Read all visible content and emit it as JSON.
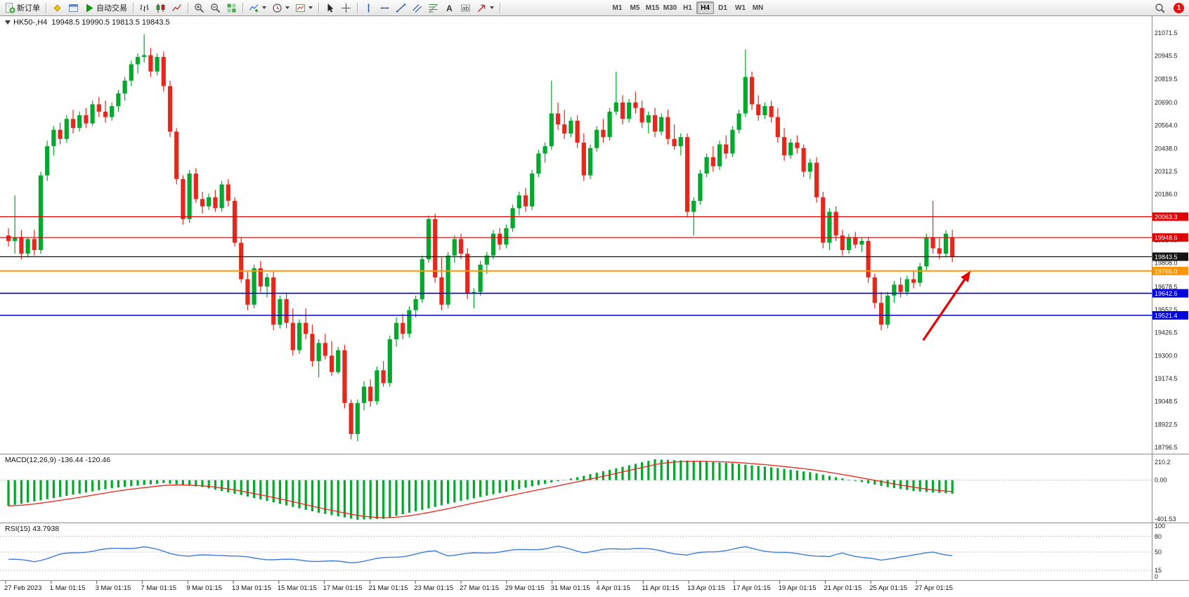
{
  "toolbar": {
    "new_order_label": "新订单",
    "auto_trading_label": "自动交易",
    "timeframes": [
      "M1",
      "M5",
      "M15",
      "M30",
      "H1",
      "H4",
      "D1",
      "W1",
      "MN"
    ],
    "active_timeframe": "H4",
    "notification_count": "1"
  },
  "chart": {
    "symbol_period": "HK50-,H4",
    "ohlc": "19948.5 19990.5 19813.5 19843.5"
  },
  "indicators_text": {
    "macd_label": "MACD(12,26,9)",
    "macd_main": "-136.44",
    "macd_signal": "-120.46",
    "rsi_label": "RSI(15)",
    "rsi_value": "43.7938"
  },
  "chart_data": {
    "type": "candlestick",
    "symbol": "HK50-",
    "period": "H4",
    "current_bar": {
      "open": 19948.5,
      "high": 19990.5,
      "low": 19813.5,
      "close": 19843.5
    },
    "ylim": [
      18796.5,
      21071.5
    ],
    "colors": {
      "bull": "#00A92B",
      "bear": "#E8261C",
      "macd_hist": "#00A92B",
      "macd_signal": "#E8261C",
      "rsi_line": "#3D7BE0",
      "arrow": "#E60000"
    },
    "candles": [
      [
        19960,
        20000,
        19900,
        19930
      ],
      [
        19930,
        20180,
        19860,
        19950
      ],
      [
        19950,
        19990,
        19830,
        19860
      ],
      [
        19860,
        19950,
        19840,
        19940
      ],
      [
        19940,
        19990,
        19850,
        19880
      ],
      [
        19880,
        20310,
        19860,
        20290
      ],
      [
        20290,
        20480,
        20260,
        20450
      ],
      [
        20450,
        20560,
        20400,
        20540
      ],
      [
        20540,
        20580,
        20460,
        20490
      ],
      [
        20490,
        20620,
        20470,
        20600
      ],
      [
        20600,
        20650,
        20520,
        20550
      ],
      [
        20550,
        20640,
        20530,
        20620
      ],
      [
        20620,
        20660,
        20550,
        20575
      ],
      [
        20575,
        20700,
        20560,
        20680
      ],
      [
        20680,
        20720,
        20610,
        20640
      ],
      [
        20640,
        20700,
        20580,
        20610
      ],
      [
        20610,
        20690,
        20590,
        20670
      ],
      [
        20670,
        20760,
        20640,
        20740
      ],
      [
        20740,
        20830,
        20700,
        20810
      ],
      [
        20810,
        20920,
        20780,
        20900
      ],
      [
        20900,
        20960,
        20850,
        20940
      ],
      [
        20940,
        21065,
        20910,
        20950
      ],
      [
        20950,
        20990,
        20830,
        20860
      ],
      [
        20860,
        20960,
        20840,
        20940
      ],
      [
        20940,
        20970,
        20750,
        20780
      ],
      [
        20780,
        20810,
        20500,
        20530
      ],
      [
        20530,
        20550,
        20240,
        20270
      ],
      [
        20270,
        20290,
        20020,
        20050
      ],
      [
        20050,
        20320,
        20030,
        20300
      ],
      [
        20300,
        20330,
        20140,
        20160
      ],
      [
        20160,
        20200,
        20080,
        20120
      ],
      [
        20120,
        20190,
        20100,
        20170
      ],
      [
        20170,
        20210,
        20090,
        20110
      ],
      [
        20110,
        20260,
        20090,
        20240
      ],
      [
        20240,
        20270,
        20120,
        20150
      ],
      [
        20150,
        20170,
        19900,
        19920
      ],
      [
        19920,
        19950,
        19700,
        19720
      ],
      [
        19720,
        19760,
        19550,
        19580
      ],
      [
        19580,
        19800,
        19560,
        19780
      ],
      [
        19780,
        19820,
        19650,
        19680
      ],
      [
        19680,
        19750,
        19620,
        19730
      ],
      [
        19730,
        19760,
        19440,
        19470
      ],
      [
        19470,
        19630,
        19450,
        19610
      ],
      [
        19610,
        19640,
        19450,
        19480
      ],
      [
        19480,
        19560,
        19300,
        19330
      ],
      [
        19330,
        19500,
        19310,
        19480
      ],
      [
        19480,
        19560,
        19390,
        19420
      ],
      [
        19420,
        19470,
        19240,
        19270
      ],
      [
        19270,
        19390,
        19180,
        19370
      ],
      [
        19370,
        19420,
        19280,
        19300
      ],
      [
        19300,
        19380,
        19190,
        19210
      ],
      [
        19210,
        19350,
        19200,
        19330
      ],
      [
        19330,
        19360,
        19010,
        19040
      ],
      [
        19040,
        19060,
        18840,
        18870
      ],
      [
        18870,
        19060,
        18830,
        19040
      ],
      [
        19040,
        19160,
        19000,
        19130
      ],
      [
        19130,
        19170,
        19020,
        19050
      ],
      [
        19050,
        19240,
        19030,
        19220
      ],
      [
        19220,
        19270,
        19130,
        19150
      ],
      [
        19150,
        19410,
        19130,
        19390
      ],
      [
        19390,
        19510,
        19350,
        19480
      ],
      [
        19480,
        19530,
        19390,
        19420
      ],
      [
        19420,
        19570,
        19400,
        19550
      ],
      [
        19550,
        19630,
        19510,
        19610
      ],
      [
        19610,
        19850,
        19590,
        19830
      ],
      [
        19830,
        20070,
        19810,
        20050
      ],
      [
        20050,
        20080,
        19700,
        19730
      ],
      [
        19730,
        19840,
        19550,
        19580
      ],
      [
        19580,
        19870,
        19560,
        19850
      ],
      [
        19850,
        19960,
        19810,
        19940
      ],
      [
        19940,
        19970,
        19830,
        19860
      ],
      [
        19860,
        19890,
        19610,
        19640
      ],
      [
        19640,
        19670,
        19560,
        19650
      ],
      [
        19650,
        19820,
        19630,
        19800
      ],
      [
        19800,
        19870,
        19750,
        19850
      ],
      [
        19850,
        19990,
        19830,
        19970
      ],
      [
        19970,
        20000,
        19880,
        19910
      ],
      [
        19910,
        20020,
        19890,
        20000
      ],
      [
        20000,
        20130,
        19980,
        20110
      ],
      [
        20110,
        20200,
        20070,
        20180
      ],
      [
        20180,
        20220,
        20090,
        20120
      ],
      [
        20120,
        20320,
        20100,
        20300
      ],
      [
        20300,
        20430,
        20280,
        20410
      ],
      [
        20410,
        20470,
        20360,
        20450
      ],
      [
        20450,
        20810,
        20430,
        20630
      ],
      [
        20630,
        20690,
        20540,
        20570
      ],
      [
        20570,
        20650,
        20490,
        20520
      ],
      [
        20520,
        20610,
        20500,
        20590
      ],
      [
        20590,
        20620,
        20440,
        20470
      ],
      [
        20470,
        20520,
        20260,
        20290
      ],
      [
        20290,
        20460,
        20270,
        20440
      ],
      [
        20440,
        20560,
        20420,
        20540
      ],
      [
        20540,
        20600,
        20470,
        20500
      ],
      [
        20500,
        20660,
        20480,
        20640
      ],
      [
        20640,
        20860,
        20620,
        20690
      ],
      [
        20690,
        20730,
        20570,
        20600
      ],
      [
        20600,
        20710,
        20580,
        20690
      ],
      [
        20690,
        20750,
        20630,
        20660
      ],
      [
        20660,
        20700,
        20550,
        20580
      ],
      [
        20580,
        20640,
        20520,
        20620
      ],
      [
        20620,
        20660,
        20500,
        20530
      ],
      [
        20530,
        20630,
        20510,
        20610
      ],
      [
        20610,
        20650,
        20460,
        20490
      ],
      [
        20490,
        20570,
        20430,
        20450
      ],
      [
        20450,
        20520,
        20400,
        20500
      ],
      [
        20500,
        20520,
        20060,
        20090
      ],
      [
        20090,
        20170,
        19960,
        20150
      ],
      [
        20150,
        20320,
        20130,
        20300
      ],
      [
        20300,
        20410,
        20280,
        20390
      ],
      [
        20390,
        20450,
        20310,
        20340
      ],
      [
        20340,
        20480,
        20320,
        20460
      ],
      [
        20460,
        20510,
        20380,
        20410
      ],
      [
        20410,
        20560,
        20390,
        20540
      ],
      [
        20540,
        20650,
        20520,
        20630
      ],
      [
        20630,
        20980,
        20610,
        20830
      ],
      [
        20830,
        20860,
        20650,
        20680
      ],
      [
        20680,
        20730,
        20590,
        20620
      ],
      [
        20620,
        20690,
        20600,
        20670
      ],
      [
        20670,
        20700,
        20580,
        20610
      ],
      [
        20610,
        20660,
        20470,
        20500
      ],
      [
        20500,
        20550,
        20370,
        20400
      ],
      [
        20400,
        20490,
        20380,
        20470
      ],
      [
        20470,
        20510,
        20410,
        20440
      ],
      [
        20440,
        20460,
        20280,
        20310
      ],
      [
        20310,
        20380,
        20270,
        20360
      ],
      [
        20360,
        20390,
        20140,
        20170
      ],
      [
        20170,
        20200,
        19890,
        19920
      ],
      [
        19920,
        20110,
        19880,
        20090
      ],
      [
        20090,
        20120,
        19930,
        19960
      ],
      [
        19960,
        19990,
        19850,
        19880
      ],
      [
        19880,
        19970,
        19860,
        19950
      ],
      [
        19950,
        19980,
        19890,
        19910
      ],
      [
        19910,
        19950,
        19870,
        19930
      ],
      [
        19930,
        19950,
        19700,
        19730
      ],
      [
        19730,
        19750,
        19560,
        19590
      ],
      [
        19590,
        19650,
        19440,
        19470
      ],
      [
        19470,
        19650,
        19450,
        19630
      ],
      [
        19630,
        19710,
        19590,
        19690
      ],
      [
        19690,
        19730,
        19620,
        19650
      ],
      [
        19650,
        19740,
        19630,
        19720
      ],
      [
        19720,
        19770,
        19670,
        19700
      ],
      [
        19700,
        19810,
        19680,
        19790
      ],
      [
        19790,
        19970,
        19770,
        19950
      ],
      [
        19950,
        20150,
        19860,
        19890
      ],
      [
        19890,
        19950,
        19830,
        19860
      ],
      [
        19860,
        19990,
        19840,
        19970
      ],
      [
        19948.5,
        19990.5,
        19813.5,
        19843.5
      ]
    ],
    "hlines": [
      {
        "price": 20063.3,
        "label": "20063.3",
        "color": "#E00000",
        "width": 1.2
      },
      {
        "price": 19948.6,
        "label": "19948.6",
        "color": "#E00000",
        "width": 1.2
      },
      {
        "price": 19843.5,
        "label": "19843.5",
        "color": "#141414",
        "width": 1.2
      },
      {
        "price": 19765.0,
        "label": "19765.0",
        "color": "#FF9500",
        "width": 2
      },
      {
        "price": 19642.6,
        "label": "19642.6",
        "color": "#0000DC",
        "width": 1.6
      },
      {
        "price": 19521.4,
        "label": "19521.4",
        "color": "#0000DC",
        "width": 1.6
      }
    ],
    "price_scale_labels": [
      "21071.5",
      "20945.5",
      "20819.5",
      "20690.0",
      "20564.0",
      "20438.0",
      "20312.5",
      "20186.0",
      "19934.0",
      "19808.0",
      "19678.5",
      "19552.5",
      "19426.5",
      "19300.0",
      "19174.5",
      "19048.5",
      "18922.5",
      "18796.5"
    ],
    "time_labels": [
      "27 Feb 2023",
      "1 Mar 01:15",
      "3 Mar 01:15",
      "7 Mar 01:15",
      "9 Mar 01:15",
      "13 Mar 01:15",
      "15 Mar 01:15",
      "17 Mar 01:15",
      "21 Mar 01:15",
      "23 Mar 01:15",
      "27 Mar 01:15",
      "29 Mar 01:15",
      "31 Mar 01:15",
      "4 Apr 01:15",
      "11 Apr 01:15",
      "13 Apr 01:15",
      "17 Apr 01:15",
      "19 Apr 01:15",
      "21 Apr 01:15",
      "25 Apr 01:15",
      "27 Apr 01:15"
    ],
    "indicators": {
      "macd": {
        "params": [
          12,
          26,
          9
        ],
        "value_main": -136.44,
        "value_signal": -120.46,
        "scale_max_text": "210.2",
        "scale_zero_text": "0.00",
        "scale_min_text": "-401.53",
        "points": [
          [
            0,
            -260
          ],
          [
            8,
            -170
          ],
          [
            16,
            -80
          ],
          [
            24,
            -30
          ],
          [
            30,
            -70
          ],
          [
            36,
            -150
          ],
          [
            42,
            -240
          ],
          [
            48,
            -330
          ],
          [
            54,
            -400
          ],
          [
            58,
            -390
          ],
          [
            64,
            -300
          ],
          [
            70,
            -210
          ],
          [
            76,
            -130
          ],
          [
            82,
            -50
          ],
          [
            88,
            30
          ],
          [
            94,
            120
          ],
          [
            100,
            210
          ],
          [
            106,
            195
          ],
          [
            112,
            170
          ],
          [
            118,
            130
          ],
          [
            124,
            80
          ],
          [
            128,
            30
          ],
          [
            132,
            -20
          ],
          [
            136,
            -70
          ],
          [
            140,
            -110
          ],
          [
            143,
            -125
          ],
          [
            146,
            -136.44
          ]
        ]
      },
      "rsi": {
        "period": 15,
        "value": 43.7938,
        "levels": [
          80,
          50,
          15
        ],
        "scale_labels": [
          "100",
          "80",
          "50",
          "15",
          "0"
        ],
        "points": [
          [
            0,
            36
          ],
          [
            4,
            32
          ],
          [
            8,
            45
          ],
          [
            14,
            54
          ],
          [
            21,
            60
          ],
          [
            25,
            48
          ],
          [
            28,
            42
          ],
          [
            33,
            45
          ],
          [
            38,
            38
          ],
          [
            43,
            35
          ],
          [
            48,
            33
          ],
          [
            53,
            30
          ],
          [
            56,
            35
          ],
          [
            62,
            44
          ],
          [
            66,
            52
          ],
          [
            68,
            44
          ],
          [
            73,
            48
          ],
          [
            77,
            52
          ],
          [
            83,
            57
          ],
          [
            85,
            60
          ],
          [
            89,
            50
          ],
          [
            93,
            55
          ],
          [
            97,
            58
          ],
          [
            101,
            52
          ],
          [
            105,
            44
          ],
          [
            108,
            50
          ],
          [
            112,
            55
          ],
          [
            114,
            59
          ],
          [
            119,
            49
          ],
          [
            123,
            46
          ],
          [
            127,
            40
          ],
          [
            129,
            48
          ],
          [
            133,
            38
          ],
          [
            135,
            33
          ],
          [
            138,
            42
          ],
          [
            141,
            45
          ],
          [
            143,
            50
          ],
          [
            145,
            46
          ],
          [
            146,
            43.79
          ]
        ]
      }
    },
    "arrow": {
      "from_bar": 141.5,
      "from_price": 19385,
      "to_bar": 148.8,
      "to_price": 19765,
      "width": 3.2
    }
  }
}
